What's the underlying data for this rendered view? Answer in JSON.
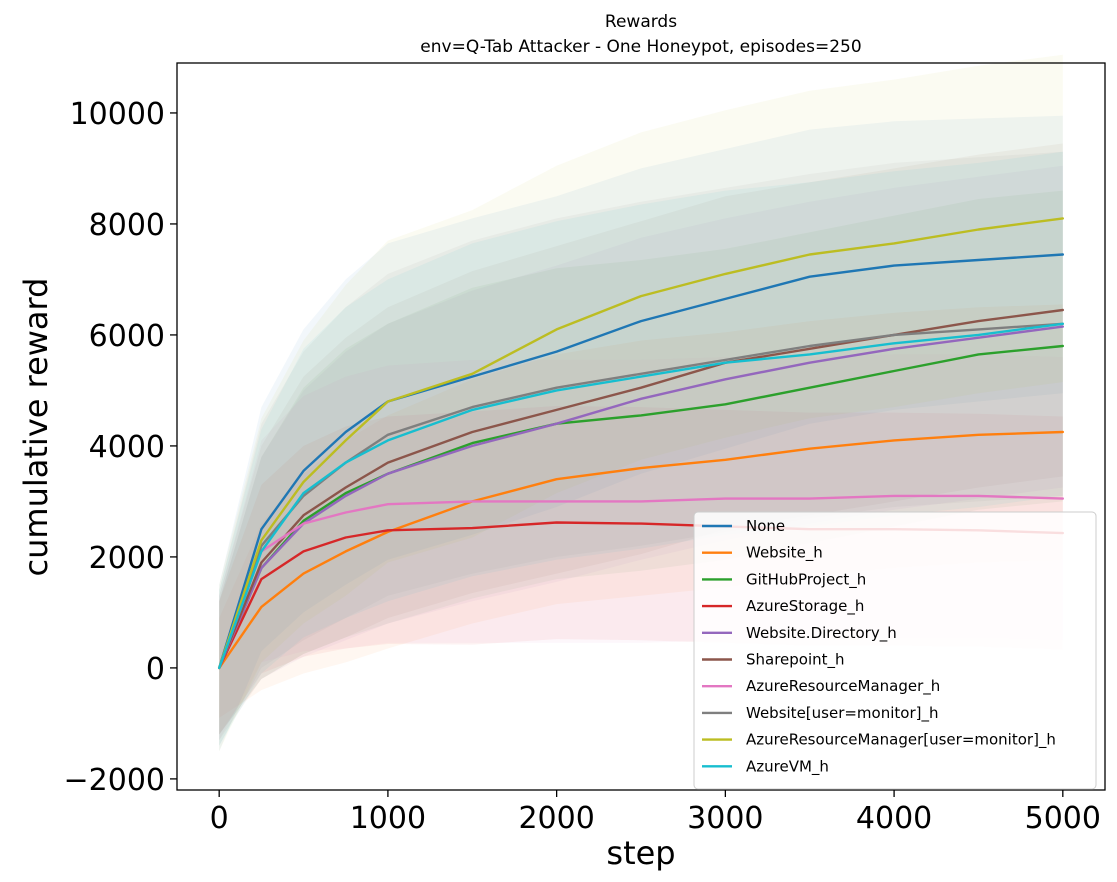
{
  "chart_data": {
    "type": "line",
    "title": "Rewards",
    "subtitle": "env=Q-Tab Attacker - One Honeypot, episodes=250",
    "xlabel": "step",
    "ylabel": "cumulative reward",
    "xlim": [
      -250,
      5250
    ],
    "ylim": [
      -2200,
      10900
    ],
    "xticks": [
      0,
      1000,
      2000,
      3000,
      4000,
      5000
    ],
    "xtick_labels": [
      "0",
      "1000",
      "2000",
      "3000",
      "4000",
      "5000"
    ],
    "yticks": [
      -2000,
      0,
      2000,
      4000,
      6000,
      8000,
      10000
    ],
    "ytick_labels": [
      "−2000",
      "0",
      "2000",
      "4000",
      "6000",
      "8000",
      "10000"
    ],
    "grid": false,
    "legend_position": "lower-right",
    "x": [
      0,
      250,
      500,
      750,
      1000,
      1500,
      2000,
      2500,
      3000,
      3500,
      4000,
      4500,
      5000
    ],
    "series": [
      {
        "name": "None",
        "color": "#1f77b4",
        "values": [
          0,
          2500,
          3550,
          4250,
          4800,
          5250,
          5700,
          6250,
          6650,
          7050,
          7250,
          7350,
          7450
        ],
        "band": [
          1500,
          2200,
          2550,
          2750,
          2850,
          2850,
          2800,
          2750,
          2700,
          2650,
          2600,
          2550,
          2500
        ]
      },
      {
        "name": "Website_h",
        "color": "#ff7f0e",
        "values": [
          0,
          1100,
          1700,
          2100,
          2450,
          3000,
          3400,
          3600,
          3750,
          3950,
          4100,
          4200,
          4250
        ],
        "band": [
          900,
          1500,
          1800,
          2000,
          2100,
          2200,
          2250,
          2300,
          2300,
          2300,
          2300,
          2300,
          2300
        ]
      },
      {
        "name": "GitHubProject_h",
        "color": "#2ca02c",
        "values": [
          0,
          1800,
          2650,
          3150,
          3500,
          4050,
          4400,
          4550,
          4750,
          5050,
          5350,
          5650,
          5800
        ],
        "band": [
          1200,
          2000,
          2400,
          2600,
          2700,
          2800,
          2800,
          2800,
          2800,
          2800,
          2800,
          2800,
          2800
        ]
      },
      {
        "name": "AzureStorage_h",
        "color": "#d62728",
        "values": [
          0,
          1600,
          2100,
          2350,
          2480,
          2520,
          2620,
          2600,
          2550,
          2500,
          2500,
          2480,
          2430
        ],
        "band": [
          1200,
          1700,
          1900,
          2000,
          2050,
          2100,
          2100,
          2100,
          2100,
          2100,
          2100,
          2100,
          2100
        ]
      },
      {
        "name": "Website.Directory_h",
        "color": "#9467bd",
        "values": [
          0,
          1800,
          2600,
          3100,
          3500,
          4000,
          4400,
          4850,
          5200,
          5500,
          5750,
          5950,
          6150
        ],
        "band": [
          1200,
          2000,
          2400,
          2600,
          2700,
          2800,
          2850,
          2900,
          2900,
          2900,
          2900,
          2900,
          2900
        ]
      },
      {
        "name": "Sharepoint_h",
        "color": "#8c564b",
        "values": [
          0,
          1900,
          2750,
          3250,
          3700,
          4250,
          4650,
          5050,
          5500,
          5750,
          6000,
          6250,
          6450
        ],
        "band": [
          1300,
          2100,
          2500,
          2700,
          2800,
          2900,
          2950,
          3000,
          3000,
          3000,
          3000,
          3000,
          3000
        ]
      },
      {
        "name": "AzureResourceManager_h",
        "color": "#e377c2",
        "values": [
          0,
          2100,
          2600,
          2800,
          2950,
          3000,
          3000,
          3000,
          3050,
          3050,
          3100,
          3100,
          3050
        ],
        "band": [
          1300,
          2000,
          2300,
          2450,
          2500,
          2550,
          2550,
          2550,
          2550,
          2550,
          2550,
          2550,
          2550
        ]
      },
      {
        "name": "Website[user=monitor]_h",
        "color": "#7f7f7f",
        "values": [
          0,
          2200,
          3100,
          3700,
          4200,
          4700,
          5050,
          5300,
          5550,
          5800,
          6000,
          6100,
          6200
        ],
        "band": [
          1400,
          2200,
          2600,
          2800,
          2900,
          3000,
          3050,
          3100,
          3100,
          3100,
          3100,
          3100,
          3100
        ]
      },
      {
        "name": "AzureResourceManager[user=monitor]_h",
        "color": "#bcbd22",
        "values": [
          0,
          2300,
          3350,
          4100,
          4800,
          5300,
          6100,
          6700,
          7100,
          7450,
          7650,
          7900,
          8100
        ],
        "band": [
          1500,
          2200,
          2550,
          2800,
          2900,
          2950,
          2950,
          2950,
          2950,
          2950,
          2950,
          2950,
          2950
        ]
      },
      {
        "name": "AzureVM_h",
        "color": "#17becf",
        "values": [
          0,
          2100,
          3150,
          3700,
          4100,
          4650,
          5000,
          5250,
          5500,
          5650,
          5850,
          6000,
          6200
        ],
        "band": [
          1400,
          2200,
          2600,
          2800,
          2900,
          3000,
          3050,
          3100,
          3100,
          3100,
          3100,
          3100,
          3100
        ]
      }
    ]
  }
}
